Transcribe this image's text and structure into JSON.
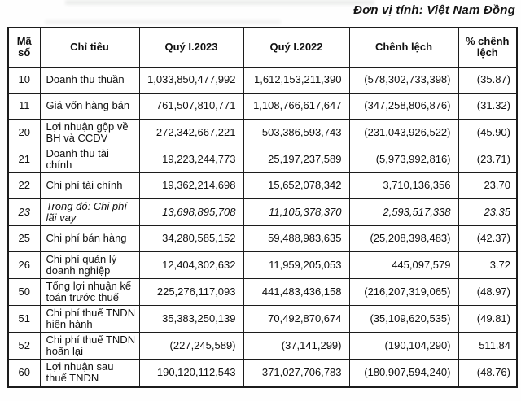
{
  "unit_label": "Đơn vị tính: Việt Nam Đồng",
  "table": {
    "columns": [
      {
        "key": "code",
        "label": "Mã số"
      },
      {
        "key": "item",
        "label": "Chỉ tiêu"
      },
      {
        "key": "q1_2023",
        "label": "Quý I.2023"
      },
      {
        "key": "q1_2022",
        "label": "Quý I.2022"
      },
      {
        "key": "diff",
        "label": "Chênh lệch"
      },
      {
        "key": "pct",
        "label": "% chênh lệch"
      }
    ],
    "rows": [
      {
        "code": "10",
        "item": "Doanh thu thuần",
        "q1_2023": "1,033,850,477,992",
        "q1_2022": "1,612,153,211,390",
        "diff": "(578,302,733,398)",
        "pct": "(35.87)",
        "italic": false
      },
      {
        "code": "11",
        "item": "Giá vốn hàng bán",
        "q1_2023": "761,507,810,771",
        "q1_2022": "1,108,766,617,647",
        "diff": "(347,258,806,876)",
        "pct": "(31.32)",
        "italic": false
      },
      {
        "code": "20",
        "item": "Lợi nhuận gộp về BH và CCDV",
        "q1_2023": "272,342,667,221",
        "q1_2022": "503,386,593,743",
        "diff": "(231,043,926,522)",
        "pct": "(45.90)",
        "italic": false
      },
      {
        "code": "21",
        "item": "Doanh thu tài chính",
        "q1_2023": "19,223,244,773",
        "q1_2022": "25,197,237,589",
        "diff": "(5,973,992,816)",
        "pct": "(23.71)",
        "italic": false
      },
      {
        "code": "22",
        "item": "Chi phí tài chính",
        "q1_2023": "19,362,214,698",
        "q1_2022": "15,652,078,342",
        "diff": "3,710,136,356",
        "pct": "23.70",
        "italic": false
      },
      {
        "code": "23",
        "item": "Trong đó: Chi phí lãi vay",
        "q1_2023": "13,698,895,708",
        "q1_2022": "11,105,378,370",
        "diff": "2,593,517,338",
        "pct": "23.35",
        "italic": true
      },
      {
        "code": "25",
        "item": "Chi phí bán hàng",
        "q1_2023": "34,280,585,152",
        "q1_2022": "59,488,983,635",
        "diff": "(25,208,398,483)",
        "pct": "(42.37)",
        "italic": false
      },
      {
        "code": "26",
        "item": "Chi phí quản lý doanh nghiệp",
        "q1_2023": "12,404,302,632",
        "q1_2022": "11,959,205,053",
        "diff": "445,097,579",
        "pct": "3.72",
        "italic": false
      },
      {
        "code": "50",
        "item": "Tổng lợi nhuận kế toán trước thuế",
        "q1_2023": "225,276,117,093",
        "q1_2022": "441,483,436,158",
        "diff": "(216,207,319,065)",
        "pct": "(48.97)",
        "italic": false
      },
      {
        "code": "51",
        "item": "Chi phí thuế TNDN hiện hành",
        "q1_2023": "35,383,250,139",
        "q1_2022": "70,492,870,674",
        "diff": "(35,109,620,535)",
        "pct": "(49.81)",
        "italic": false
      },
      {
        "code": "52",
        "item": "Chi phí thuế TNDN hoãn lại",
        "q1_2023": "(227,245,589)",
        "q1_2022": "(37,141,299)",
        "diff": "(190,104,290)",
        "pct": "511.84",
        "italic": false
      },
      {
        "code": "60",
        "item": "Lợi nhuận sau thuế TNDN",
        "q1_2023": "190,120,112,543",
        "q1_2022": "371,027,706,783",
        "diff": "(180,907,594,240)",
        "pct": "(48.76)",
        "italic": false
      }
    ]
  }
}
